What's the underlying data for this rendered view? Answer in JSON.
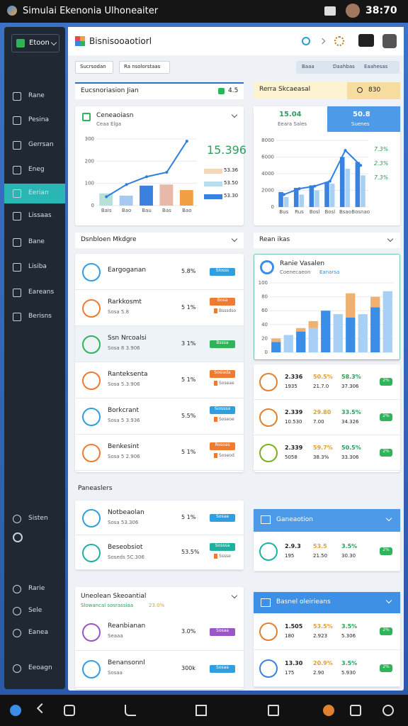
{
  "status_bar": {
    "title": "Simulai Ekenonia Ulhoneaiter",
    "time": "38:70"
  },
  "sidebar": {
    "brand": "Etoon",
    "items": [
      "Rane",
      "Pesina",
      "Gerrsan",
      "Eneg",
      "Eerian",
      "Lissaas",
      "Bane",
      "Lisiba",
      "Eareans",
      "Berisns"
    ],
    "bottom": [
      "Sisten",
      "Rarie",
      "Sele",
      "Eanea",
      "Eeoagn"
    ]
  },
  "header": {
    "title": "Bisnisooaotiorl",
    "tabs": [
      "Sucrsodan",
      "Ra nsolorstaas"
    ],
    "filters": [
      "Baaa",
      "Daahbas",
      "Eaahesas"
    ]
  },
  "overview": {
    "title": "Eucsnoriasion Jian",
    "badge": "4.5",
    "chart_title": "Ceneaoiasn",
    "chart_subtitle": "Ceaa Elga",
    "big_value": "15.396",
    "legend": [
      "53.36",
      "53.50",
      "53.30"
    ]
  },
  "sales": {
    "title": "Rerra Skcaeasal",
    "search": "830",
    "tiles": [
      {
        "value": "15.04",
        "label": "Eeara Sales"
      },
      {
        "value": "50.8",
        "label": "Suenes"
      }
    ],
    "legend": [
      "7.3%",
      "2.3%",
      "7.3%"
    ]
  },
  "markets": {
    "title": "Dsnbloen Mkdgre",
    "rows": [
      {
        "name": "Eargoganan",
        "value": "5.8%",
        "tag": "Slosss",
        "tag_color": "#2f9fe0"
      },
      {
        "name": "Rarkkosmt",
        "sub": "Sosa 5.8",
        "value": "5 1%",
        "tag": "Bosa",
        "tag_color": "#f07a30",
        "tag2": "Bsssdso"
      },
      {
        "name": "Ssn Nrcoalsi",
        "sub": "Sosa 8 3.906",
        "value": "3 1%",
        "tag": "Bsssa",
        "tag_color": "#2fb45a"
      },
      {
        "name": "Ranteksenta",
        "sub": "Sosa 5.3.906",
        "value": "5 1%",
        "tag": "Sosiada",
        "tag_color": "#f07a30",
        "tag2": "Soseae"
      },
      {
        "name": "Borkcrant",
        "sub": "Sosa 5 3.936",
        "value": "5.5%",
        "tag": "Siosssa",
        "tag_color": "#2f9fe0",
        "tag2": "Soseoe"
      },
      {
        "name": "Benkesint",
        "sub": "Sosa 5 2.906",
        "value": "5 1%",
        "tag": "Rosoas",
        "tag_color": "#f07a30",
        "tag2": "Soseod"
      }
    ]
  },
  "reports": {
    "title": "Rean ikas",
    "chart_title": "Ranie Vasalen",
    "chart_subtitle": "Coenecaeon",
    "chart_subtitle2": "Eanarsa",
    "rows": [
      {
        "v1": "2.336",
        "v2": "50.5%",
        "v3": "58.3%",
        "w1": "1935",
        "w2": "21.7.0",
        "w3": "37.306",
        "tag": "2%"
      },
      {
        "v1": "2.339",
        "v2": "29.80",
        "v3": "33.5%",
        "w1": "10.530",
        "w2": "7.00",
        "w3": "34.326",
        "tag": "2%"
      },
      {
        "v1": "2.339",
        "v2": "59.7%",
        "v3": "50.5%",
        "w1": "5058",
        "w2": "38.3%",
        "w3": "33.306",
        "tag": "2%"
      }
    ]
  },
  "partners": {
    "title": "Paneaslers",
    "rows": [
      {
        "name": "Notbeaolan",
        "sub": "Sosa 53.306",
        "value": "5 1%",
        "tag": "Sosaa",
        "tag_color": "#2f9fe0"
      },
      {
        "name": "Beseobsiot",
        "sub": "Soseds 5C.306",
        "value": "53.5%",
        "tag": "Sosssa",
        "tag_color": "#20b0a0",
        "tag2": "Sssse"
      }
    ],
    "panel": {
      "title": "Ganeaotion",
      "rows": [
        {
          "v1": "2.9.3",
          "v2": "53.5",
          "v3": "3.5%",
          "w1": "195",
          "w2": "21.50",
          "w3": "30.30",
          "tag": "2%"
        }
      ]
    }
  },
  "potential": {
    "title": "Uneolean Skeoantial",
    "subtitle": "Slowancal sosrassiaa",
    "subtitle_value": "23.0%",
    "rows": [
      {
        "name": "Reanbianan",
        "sub": "Seaaa",
        "value": "3.0%",
        "tag": "Sosaa",
        "tag_color": "#9a55c8"
      },
      {
        "name": "Benansonnl",
        "sub": "Sosaa",
        "value": "300k",
        "tag": "Sosaa",
        "tag_color": "#2f9fe0"
      }
    ],
    "panel": {
      "title": "Basnel oleirieans",
      "rows": [
        {
          "v1": "1.505",
          "v2": "53.5%",
          "v3": "3.5%",
          "w1": "180",
          "w2": "2.923",
          "w3": "5.306",
          "tag": "2%"
        },
        {
          "v1": "13.30",
          "v2": "20.9%",
          "v3": "3.5%",
          "w1": "175",
          "w2": "2.90",
          "w3": "5.930",
          "tag": "2%"
        }
      ]
    }
  },
  "chart_data": [
    {
      "type": "bar",
      "categories": [
        "Bais",
        "Bao",
        "Bau",
        "Bas",
        "Bao"
      ],
      "ylim": [
        0,
        300
      ],
      "yticks": [
        0,
        100,
        200,
        300
      ],
      "series": [
        {
          "type": "bar",
          "colors": [
            "#b7e0d8",
            "#a8c8f0",
            "#3b82e0",
            "#e8b8a8",
            "#f0a040"
          ],
          "values": [
            55,
            45,
            90,
            95,
            70
          ]
        },
        {
          "type": "line",
          "color": "#2f7fe0",
          "values": [
            40,
            95,
            130,
            150,
            290
          ]
        }
      ]
    },
    {
      "type": "bar",
      "categories": [
        "Bus",
        "Rus",
        "Bosl",
        "Bosl",
        "Bsao",
        "Bosnao"
      ],
      "ylim": [
        0,
        8000
      ],
      "yticks": [
        0,
        2000,
        4000,
        6000,
        8000
      ],
      "series": [
        {
          "type": "bar",
          "color": "#3b82e0",
          "values": [
            1800,
            2300,
            2600,
            3000,
            6000,
            5400
          ]
        },
        {
          "type": "bar",
          "color": "#a8d0f0",
          "values": [
            1200,
            1500,
            2000,
            2800,
            4600,
            3800
          ]
        },
        {
          "type": "line",
          "color": "#2f7fe0",
          "values": [
            1500,
            2200,
            2500,
            3100,
            6800,
            5000
          ]
        }
      ]
    },
    {
      "type": "stacked_bar",
      "categories": [
        null,
        null,
        null,
        null,
        null,
        null,
        null,
        null,
        null,
        null
      ],
      "ylim": [
        0,
        100
      ],
      "yticks": [
        0,
        20,
        40,
        60,
        80,
        100
      ],
      "series": [
        {
          "color": "#3b8ee8",
          "values": [
            15,
            25,
            30,
            35,
            60,
            55,
            50,
            55,
            65,
            88
          ]
        },
        {
          "color": "#f0b070",
          "values": [
            5,
            0,
            5,
            10,
            0,
            0,
            35,
            0,
            15,
            0
          ]
        }
      ]
    }
  ]
}
